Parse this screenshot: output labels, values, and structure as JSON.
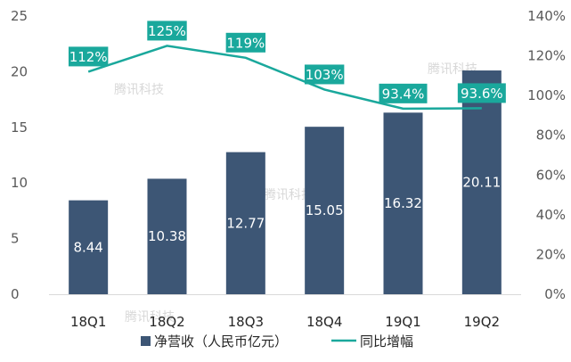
{
  "chart_data": {
    "type": "bar",
    "categories": [
      "18Q1",
      "18Q2",
      "18Q3",
      "18Q4",
      "19Q1",
      "19Q2"
    ],
    "series": [
      {
        "name": "净营收（人民币亿元）",
        "type": "bar",
        "axis": "left",
        "values": [
          8.44,
          10.38,
          12.77,
          15.05,
          16.32,
          20.11
        ],
        "labels": [
          "8.44",
          "10.38",
          "12.77",
          "15.05",
          "16.32",
          "20.11"
        ],
        "color": "#3d5675"
      },
      {
        "name": "同比增幅",
        "type": "line",
        "axis": "right",
        "values": [
          112,
          125,
          119,
          103,
          93.4,
          93.6
        ],
        "labels": [
          "112%",
          "125%",
          "119%",
          "103%",
          "93.4%",
          "93.6%"
        ],
        "color": "#1aa89c"
      }
    ],
    "y_left": {
      "min": 0,
      "max": 25,
      "ticks": [
        "0",
        "5",
        "10",
        "15",
        "20",
        "25"
      ]
    },
    "y_right": {
      "min": 0,
      "max": 140,
      "ticks": [
        "0%",
        "20%",
        "40%",
        "60%",
        "80%",
        "100%",
        "120%",
        "140%"
      ]
    },
    "legend": {
      "position": "bottom"
    },
    "watermark": "腾讯科技",
    "grid": false
  }
}
